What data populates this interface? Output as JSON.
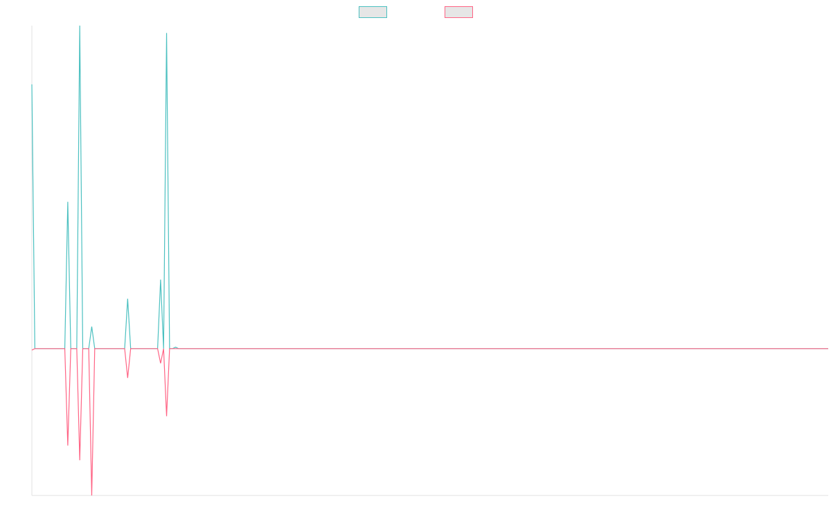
{
  "chart_data": {
    "type": "line",
    "title": "",
    "xlabel": "",
    "ylabel": "",
    "legend_position": "top-center",
    "grid": false,
    "xlim": [
      0,
      266
    ],
    "ylim": [
      -10,
      22
    ],
    "x": [
      0,
      1,
      2,
      3,
      4,
      5,
      6,
      7,
      8,
      9,
      10,
      11,
      12,
      13,
      14,
      15,
      16,
      17,
      18,
      19,
      20,
      21,
      22,
      23,
      24,
      25,
      26,
      27,
      28,
      29,
      30,
      31,
      32,
      33,
      34,
      35,
      36,
      37,
      38,
      39,
      40,
      41,
      42,
      43,
      44,
      45,
      46,
      47,
      48,
      49,
      50,
      51,
      52,
      53,
      54,
      55,
      56,
      57,
      58,
      59,
      60,
      61,
      62,
      63,
      64,
      65,
      266
    ],
    "series": [
      {
        "color": "#4bc0c0",
        "fill": "#e6e6e6",
        "values": [
          18,
          0,
          0,
          0,
          0,
          0,
          0,
          0,
          0,
          0,
          0,
          0,
          10,
          0,
          0,
          0,
          22,
          0,
          0,
          0,
          1.5,
          0,
          0,
          0,
          0,
          0,
          0,
          0,
          0,
          0,
          0,
          0,
          3.4,
          0,
          0,
          0,
          0,
          0,
          0,
          0,
          0,
          0,
          0,
          4.7,
          0,
          21.5,
          0,
          0,
          0.1,
          0,
          0,
          0,
          0,
          0,
          0,
          0,
          0,
          0,
          0,
          0,
          0,
          0,
          0,
          0,
          0,
          0,
          0
        ]
      },
      {
        "color": "#ff6384",
        "fill": "#e6e6e6",
        "values": [
          -0.1,
          0,
          0,
          0,
          0,
          0,
          0,
          0,
          0,
          0,
          0,
          0,
          -6.6,
          0,
          0,
          0,
          -7.6,
          0,
          0,
          0,
          -10,
          0,
          0,
          0,
          0,
          0,
          0,
          0,
          0,
          0,
          0,
          0,
          -2,
          0,
          0,
          0,
          0,
          0,
          0,
          0,
          0,
          0,
          0,
          -1,
          0,
          -4.6,
          0,
          0,
          0,
          0,
          0,
          0,
          0,
          0,
          0,
          0,
          0,
          0,
          0,
          0,
          0,
          0,
          0,
          0,
          0,
          0,
          0
        ]
      }
    ]
  }
}
